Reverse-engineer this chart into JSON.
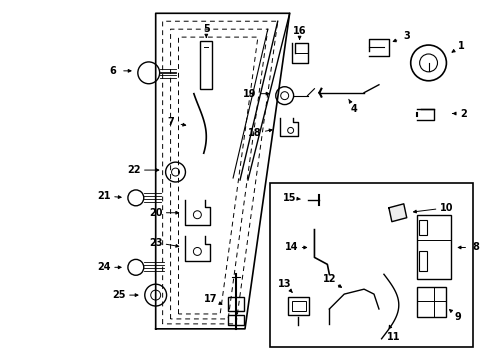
{
  "background_color": "#ffffff",
  "line_color": "#000000",
  "fig_width": 4.89,
  "fig_height": 3.6,
  "dpi": 100,
  "label_fontsize": 7.0
}
